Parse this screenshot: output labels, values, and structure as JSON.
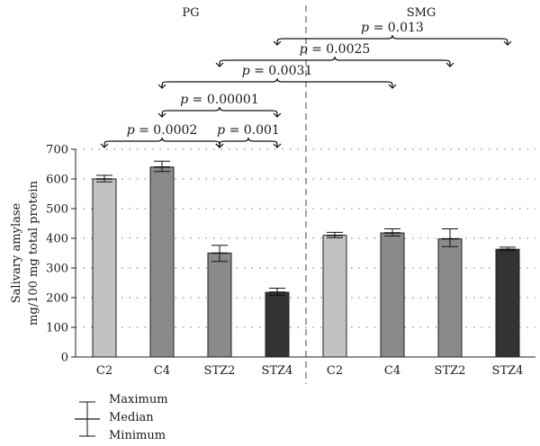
{
  "chart_data": {
    "type": "bar",
    "group_labels": [
      "PG",
      "SMG"
    ],
    "categories": [
      "C2",
      "C4",
      "STZ2",
      "STZ4",
      "C2",
      "C4",
      "STZ2",
      "STZ4"
    ],
    "series": [
      {
        "values": [
          600,
          640,
          350,
          218,
          410,
          418,
          398,
          363
        ],
        "minimum": [
          590,
          625,
          322,
          208,
          402,
          408,
          372,
          358
        ],
        "maximum": [
          612,
          660,
          376,
          232,
          420,
          432,
          432,
          370
        ]
      }
    ],
    "bar_colors": [
      "#c2c2c2",
      "#8a8a8a",
      "#8a8a8a",
      "#333333",
      "#c2c2c2",
      "#8a8a8a",
      "#8a8a8a",
      "#333333"
    ],
    "ylabel_lines": [
      "Salivary amylase",
      "mg/100 mg total protein"
    ],
    "ylim": [
      0,
      700
    ],
    "yticks": [
      0,
      100,
      200,
      300,
      400,
      500,
      600,
      700
    ],
    "grid": "horizontal-dotted",
    "divider_after_index": 3,
    "comparisons": [
      {
        "from": 0,
        "to": 2,
        "p_symbol": "p",
        "p_text": " = 0.0002"
      },
      {
        "from": 2,
        "to": 3,
        "p_symbol": "p",
        "p_text": " = 0.001"
      },
      {
        "from": 1,
        "to": 3,
        "p_symbol": "p",
        "p_text": " = 0.00001"
      },
      {
        "from": 1,
        "to": 5,
        "p_symbol": "p",
        "p_text": " = 0.0031"
      },
      {
        "from": 2,
        "to": 6,
        "p_symbol": "p",
        "p_text": " = 0.0025"
      },
      {
        "from": 3,
        "to": 7,
        "p_symbol": "p",
        "p_text": " = 0.013"
      }
    ],
    "legend": {
      "position": "bottom-left",
      "items": [
        "Maximum",
        "Median",
        "Minimum"
      ]
    }
  }
}
